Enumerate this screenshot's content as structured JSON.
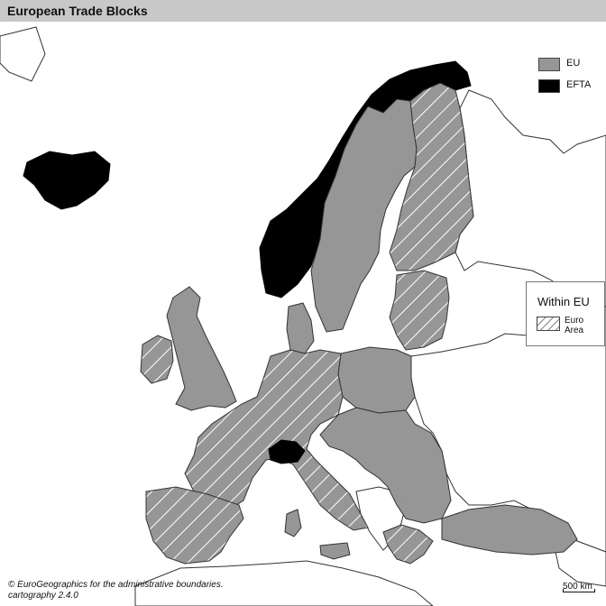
{
  "title": "European Trade Blocks",
  "colors": {
    "eu": "#969696",
    "efta": "#000000",
    "other": "#ffffff",
    "border": "#333333",
    "sea": "#ffffff",
    "euro_hatch": "#ffffff"
  },
  "legend": {
    "items": [
      {
        "label": "EU",
        "color": "#969696"
      },
      {
        "label": "EFTA",
        "color": "#000000"
      }
    ],
    "within": {
      "title": "Within EU",
      "items": [
        {
          "label": "Euro Area",
          "pattern": "diagonal-hatch"
        }
      ]
    }
  },
  "scale": {
    "label": "500 km"
  },
  "credits": {
    "line1": "© EuroGeographics for the administrative boundaries.",
    "line2": "cartography 2.4.0"
  },
  "regions": {
    "efta": [
      "Iceland",
      "Norway",
      "Switzerland"
    ],
    "eu_euro_area": [
      "Finland",
      "Ireland",
      "France",
      "Germany",
      "Spain",
      "Portugal",
      "Italy",
      "Austria",
      "Greece",
      "Belgium",
      "Netherlands",
      "Luxembourg",
      "Slovenia",
      "Slovakia",
      "Estonia",
      "Latvia",
      "Lithuania",
      "Malta",
      "Cyprus"
    ],
    "eu_non_euro": [
      "Sweden",
      "Denmark",
      "Poland",
      "Czechia",
      "Hungary",
      "Romania",
      "Bulgaria",
      "Croatia",
      "United Kingdom"
    ]
  }
}
